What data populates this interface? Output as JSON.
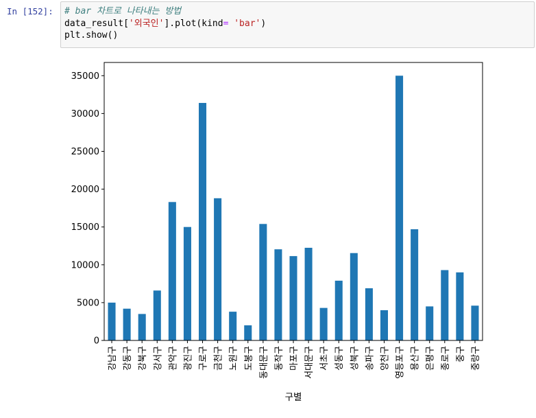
{
  "cell": {
    "prompt": "In [152]:",
    "line1_comment": "# bar 차트로 나타내는 방법",
    "line2_a": "data_result[",
    "line2_str": "'외국인'",
    "line2_b": "].plot(kind",
    "line2_op": "=",
    "line2_c": " ",
    "line2_str2": "'bar'",
    "line2_d": ")",
    "line3": "plt.show()"
  },
  "chart_data": {
    "type": "bar",
    "xlabel": "구별",
    "ylabel": "",
    "ylim": [
      0,
      36750
    ],
    "yticks": [
      0,
      5000,
      10000,
      15000,
      20000,
      25000,
      30000,
      35000
    ],
    "color": "#1f77b4",
    "categories": [
      "강남구",
      "강동구",
      "강북구",
      "강서구",
      "관악구",
      "광진구",
      "구로구",
      "금천구",
      "노원구",
      "도봉구",
      "동대문구",
      "동작구",
      "마포구",
      "서대문구",
      "서초구",
      "성동구",
      "성북구",
      "송파구",
      "양천구",
      "영등포구",
      "용산구",
      "은평구",
      "종로구",
      "중구",
      "중랑구"
    ],
    "values": [
      5000,
      4200,
      3500,
      6600,
      18300,
      15000,
      31400,
      18800,
      3800,
      2000,
      15400,
      12050,
      11150,
      12250,
      4300,
      7900,
      11550,
      6900,
      4000,
      35000,
      14700,
      4500,
      9300,
      9000,
      4600
    ]
  }
}
